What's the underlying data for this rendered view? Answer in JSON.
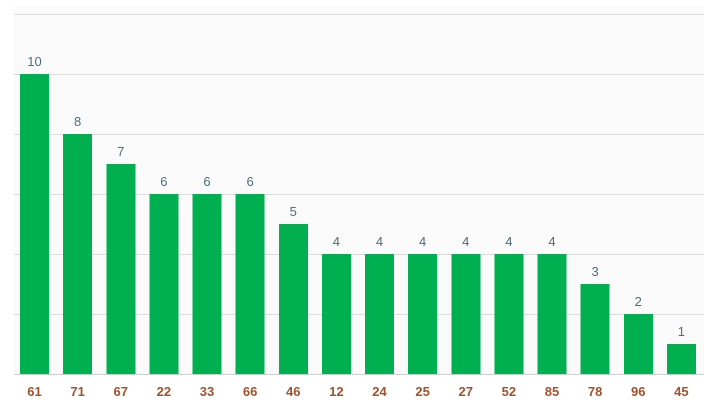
{
  "colors": {
    "bar": "#00b050",
    "data_label": "#4b6f7a",
    "tick_label": "#a0522d",
    "grid": "#dcdcdc",
    "plot_background": "#fafafa"
  },
  "chart_data": {
    "type": "bar",
    "title": "",
    "xlabel": "",
    "ylabel": "",
    "categories": [
      "61",
      "71",
      "67",
      "22",
      "33",
      "66",
      "46",
      "12",
      "24",
      "25",
      "27",
      "52",
      "85",
      "78",
      "96",
      "45"
    ],
    "values": [
      10,
      8,
      7,
      6,
      6,
      6,
      5,
      4,
      4,
      4,
      4,
      4,
      4,
      3,
      2,
      1
    ],
    "ylim": [
      0,
      12
    ],
    "y_grid_step": 2,
    "grid": true,
    "legend": "none",
    "data_labels": true
  }
}
